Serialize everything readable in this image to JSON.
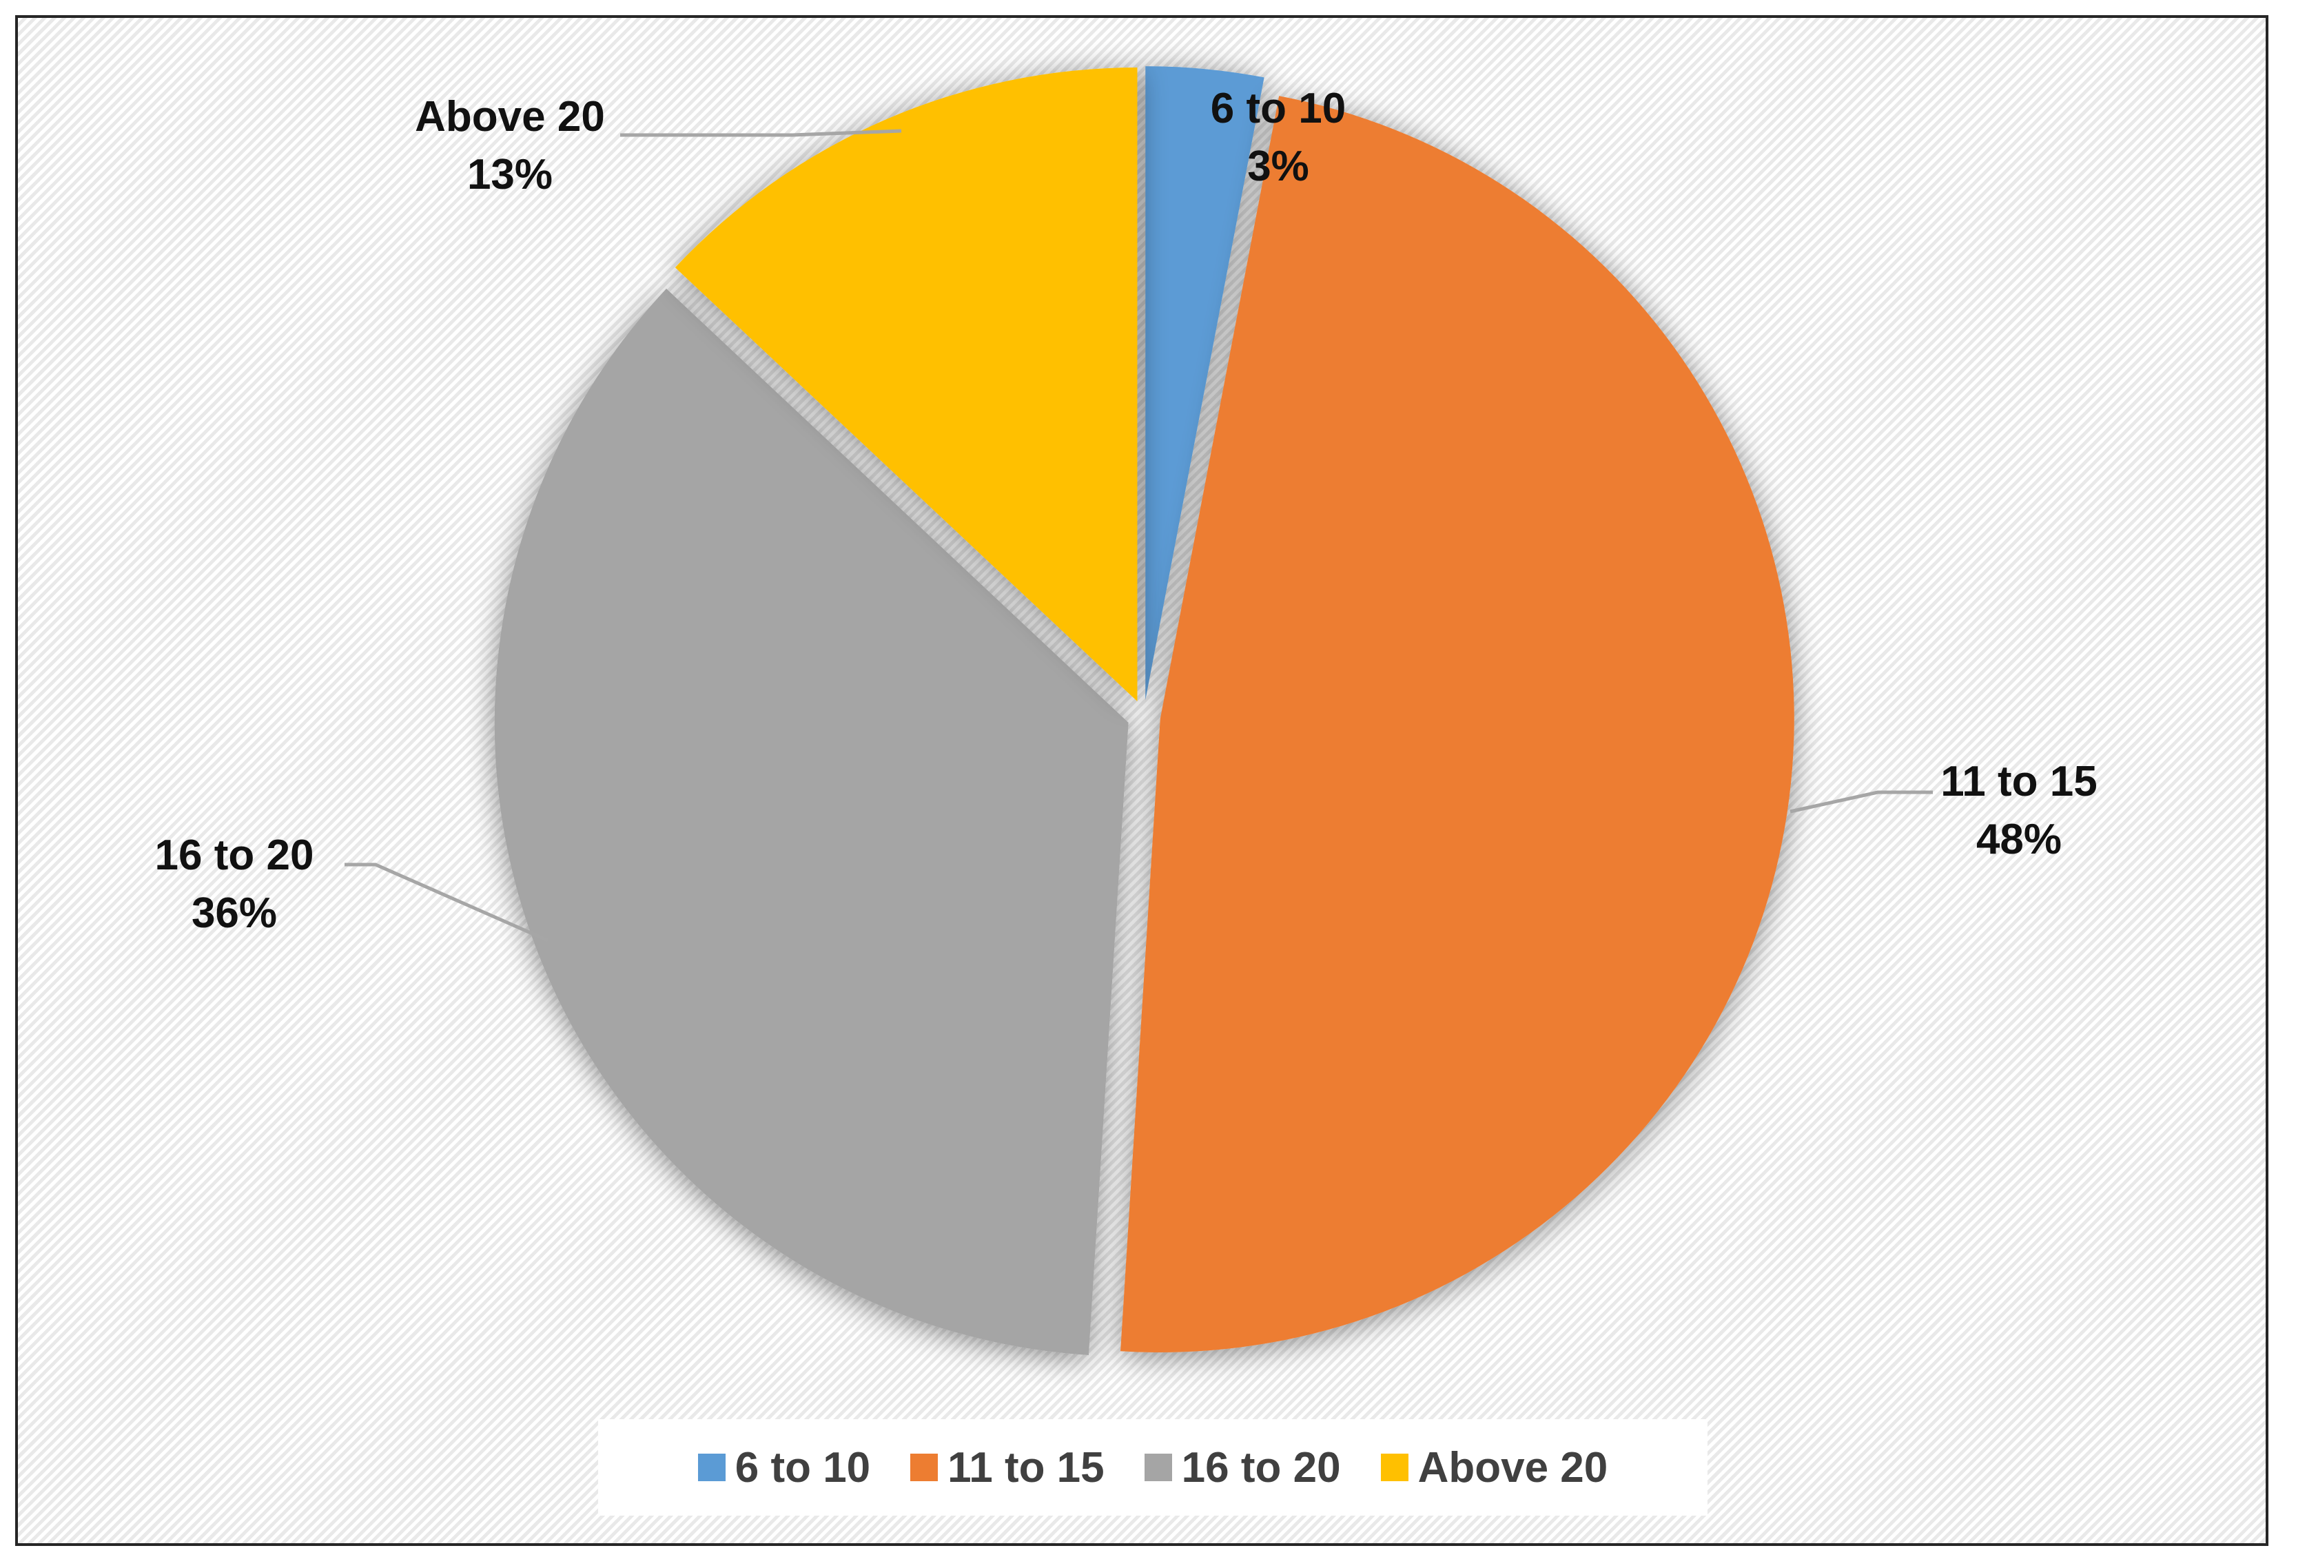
{
  "chart_data": {
    "type": "pie",
    "title": "",
    "categories": [
      "6 to 10",
      "11 to 15",
      "16 to 20",
      "Above 20"
    ],
    "values": [
      3,
      48,
      36,
      13
    ],
    "value_labels": [
      "3%",
      "48%",
      "36%",
      "13%"
    ],
    "colors": [
      "#5b9bd5",
      "#ed7d31",
      "#a5a5a5",
      "#ffc000"
    ],
    "exploded": true,
    "legend_position": "bottom",
    "legend": {
      "items": [
        {
          "label": "6 to 10",
          "color": "#5b9bd5"
        },
        {
          "label": "11 to 15",
          "color": "#ed7d31"
        },
        {
          "label": "16 to 20",
          "color": "#a5a5a5"
        },
        {
          "label": "Above 20",
          "color": "#ffc000"
        }
      ]
    }
  }
}
